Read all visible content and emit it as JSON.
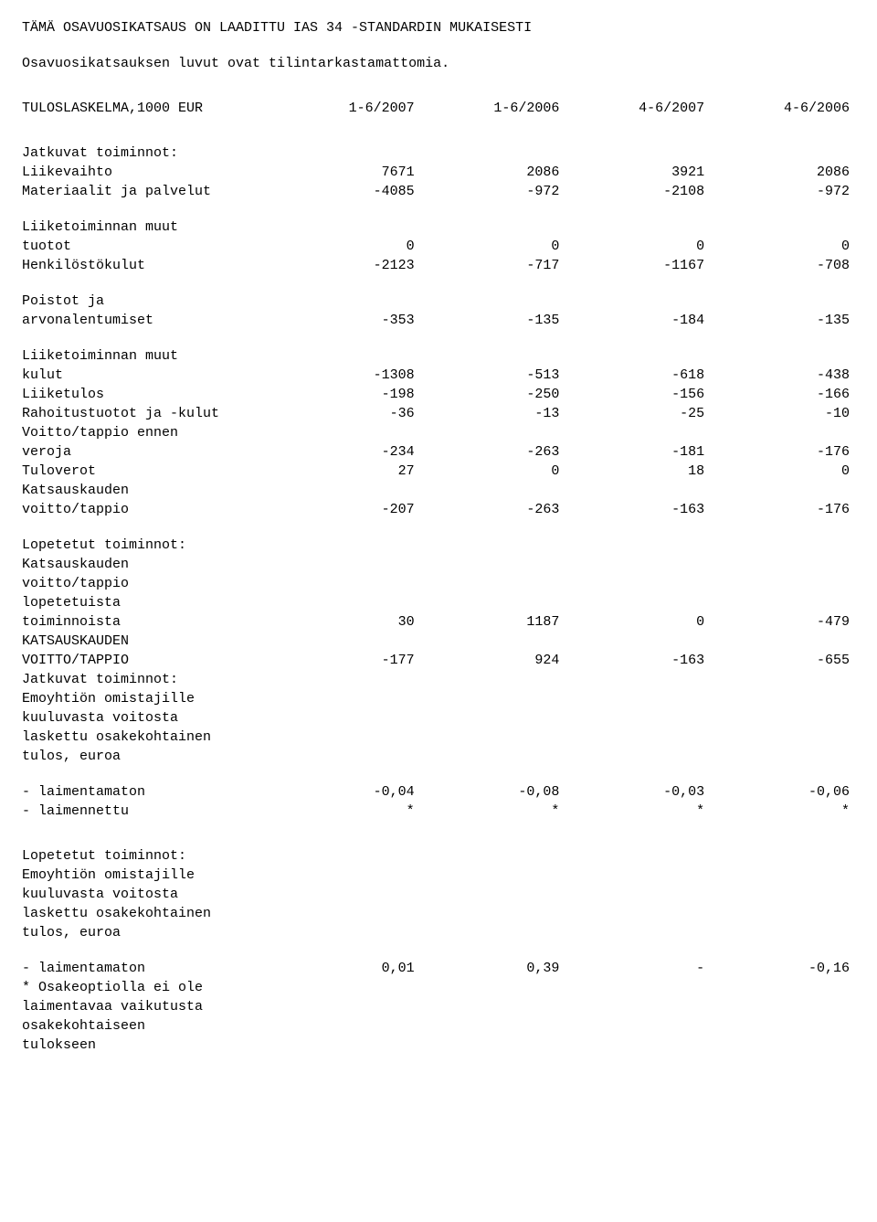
{
  "header": {
    "line1": "TÄMÄ OSAVUOSIKATSAUS ON LAADITTU IAS 34 -STANDARDIN MUKAISESTI",
    "line2": "Osavuosikatsauksen luvut ovat tilintarkastamattomia."
  },
  "income": {
    "title_label": "TULOSLASKELMA,1000 EUR",
    "col_headers": [
      "1-6/2007",
      "1-6/2006",
      "4-6/2007",
      "4-6/2006"
    ],
    "jatkuvat_label": "Jatkuvat toiminnot:",
    "rows": {
      "liikevaihto": {
        "label": "Liikevaihto",
        "v": [
          "7671",
          "2086",
          "3921",
          "2086"
        ]
      },
      "materiaalit": {
        "label": "Materiaalit ja palvelut",
        "v": [
          "-4085",
          "-972",
          "-2108",
          "-972"
        ]
      },
      "muut_tuotot_l1": "Liiketoiminnan muut",
      "muut_tuotot_l2": "tuotot",
      "muut_tuotot_v": [
        "0",
        "0",
        "0",
        "0"
      ],
      "henkilosto": {
        "label": "Henkilöstökulut",
        "v": [
          "-2123",
          "-717",
          "-1167",
          "-708"
        ]
      },
      "poistot_l1": "Poistot ja",
      "poistot_l2": "arvonalentumiset",
      "poistot_v": [
        "-353",
        "-135",
        "-184",
        "-135"
      ],
      "muut_kulut_l1": "Liiketoiminnan muut",
      "muut_kulut_l2": "kulut",
      "muut_kulut_v": [
        "-1308",
        "-513",
        "-618",
        "-438"
      ],
      "liiketulos": {
        "label": "Liiketulos",
        "v": [
          "-198",
          "-250",
          "-156",
          "-166"
        ]
      },
      "rahoitus": {
        "label": "Rahoitustuotot ja -kulut",
        "v": [
          "-36",
          "-13",
          "-25",
          "-10"
        ]
      },
      "voitto_ennen_l1": "Voitto/tappio ennen",
      "voitto_ennen_l2": "veroja",
      "voitto_ennen_v": [
        "-234",
        "-263",
        "-181",
        "-176"
      ],
      "tuloverot": {
        "label": "Tuloverot",
        "v": [
          "27",
          "0",
          "18",
          "0"
        ]
      },
      "katsaus_l1": "Katsauskauden",
      "katsaus_l2": "voitto/tappio",
      "katsaus_v": [
        "-207",
        "-263",
        "-163",
        "-176"
      ],
      "lopetetut_label": "Lopetetut toiminnot:",
      "lop_kats_l1": "Katsauskauden",
      "lop_kats_l2": "voitto/tappio",
      "lop_kats_l3": "lopetetuista",
      "lop_kats_l4": "toiminnoista",
      "lop_kats_v": [
        "30",
        "1187",
        "0",
        "-479"
      ],
      "kats_upper_l1": "KATSAUSKAUDEN",
      "kats_upper_l2": "VOITTO/TAPPIO",
      "kats_upper_v": [
        "-177",
        "924",
        "-163",
        "-655"
      ],
      "jatkuvat2": "Jatkuvat toiminnot:",
      "emo_l1": "Emoyhtiön omistajille",
      "emo_l2": "kuuluvasta voitosta",
      "emo_l3": "laskettu osakekohtainen",
      "emo_l4": "tulos, euroa",
      "laimentamaton": {
        "label": "- laimentamaton",
        "v": [
          "-0,04",
          "-0,08",
          "-0,03",
          "-0,06"
        ]
      },
      "laimennettu": {
        "label": "- laimennettu",
        "v": [
          "*",
          "*",
          "*",
          "*"
        ]
      },
      "lopetetut2": "Lopetetut toiminnot:",
      "emo2_l1": "Emoyhtiön omistajille",
      "emo2_l2": "kuuluvasta voitosta",
      "emo2_l3": "laskettu osakekohtainen",
      "emo2_l4": "tulos, euroa",
      "laimentamaton2": {
        "label": "- laimentamaton",
        "v": [
          "0,01",
          "0,39",
          "-",
          "-0,16"
        ]
      },
      "footnote_l1": "* Osakeoptiolla ei ole",
      "footnote_l2": "laimentavaa vaikutusta",
      "footnote_l3": "osakekohtaiseen",
      "footnote_l4": "tulokseen"
    }
  }
}
